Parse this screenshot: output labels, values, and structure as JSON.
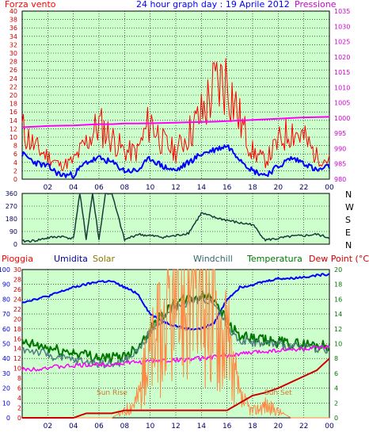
{
  "header": {
    "left_label": "Forza vento",
    "title": "24 hour graph day : 19 Aprile 2012",
    "right_label": "Pressione"
  },
  "colors": {
    "panel_bg": "#ccffcc",
    "frame": "#000000",
    "grid": "#000000",
    "red": "#ff0000",
    "blue": "#0000ff",
    "magenta": "#ff00ff",
    "dark_teal": "#1a3a3a",
    "dark_green": "#007700",
    "gray_green": "#4f7f7f",
    "orange": "#ff8844",
    "dark_red": "#cc0000",
    "solar_label": "#887700",
    "windchill_label": "#336666",
    "temp_label": "#007700",
    "sun_label": "#cc7733"
  },
  "x_ticks": [
    "02",
    "04",
    "06",
    "08",
    "10",
    "12",
    "14",
    "16",
    "18",
    "20",
    "22",
    "00"
  ],
  "direction_labels": [
    "N",
    "W",
    "S",
    "E",
    "N"
  ],
  "bottom_labels": {
    "pioggia": "Pioggia",
    "umidita": "Umidita",
    "solar": "Solar",
    "windchill": "Windchill",
    "temperatura": "Temperatura",
    "dew_point": "Dew Point (°C)",
    "sun_rise": "Sun Rise",
    "sun_set": "Sun Set"
  },
  "chart_data": [
    {
      "type": "line",
      "name": "wind-speed-and-pressure",
      "x_hours": [
        0,
        1,
        2,
        3,
        4,
        5,
        6,
        7,
        8,
        9,
        10,
        11,
        12,
        13,
        14,
        15,
        16,
        17,
        18,
        19,
        20,
        21,
        22,
        23,
        24
      ],
      "left_axis": {
        "label": "Forza vento",
        "ticks": [
          0,
          2,
          4,
          6,
          8,
          10,
          12,
          14,
          16,
          18,
          20,
          22,
          24,
          26,
          28,
          30,
          32,
          34,
          36,
          38,
          40
        ],
        "ylim": [
          0,
          40
        ]
      },
      "right_axis": {
        "label": "Pressione",
        "ticks": [
          980,
          985,
          990,
          995,
          1000,
          1005,
          1010,
          1015,
          1020,
          1025,
          1030,
          1035
        ],
        "ylim": [
          980,
          1035
        ]
      },
      "series": [
        {
          "color": "red",
          "values": [
            11,
            7,
            5,
            3,
            4,
            8,
            12,
            9,
            6,
            6,
            13,
            8,
            6,
            10,
            14,
            20,
            22,
            13,
            6,
            4,
            8,
            11,
            9,
            5,
            4
          ]
        },
        {
          "color": "blue",
          "values": [
            6,
            4,
            3,
            1,
            1,
            4,
            5,
            4,
            2,
            2,
            5,
            3,
            2,
            4,
            6,
            7,
            8,
            5,
            2,
            1,
            3,
            5,
            4,
            2,
            3
          ]
        },
        {
          "color": "magenta",
          "values": [
            997,
            997.2,
            997.4,
            997.5,
            997.6,
            997.8,
            998,
            998,
            998.2,
            998.2,
            998.3,
            998.4,
            998.5,
            998.6,
            998.7,
            998.8,
            999,
            999.2,
            999.4,
            999.6,
            999.8,
            1000,
            1000.2,
            1000.3,
            1000.4
          ]
        }
      ]
    },
    {
      "type": "line",
      "name": "wind-direction",
      "left_axis": {
        "ticks": [
          0,
          90,
          180,
          270,
          360
        ],
        "ylim": [
          0,
          360
        ]
      },
      "right_axis_labels": [
        "N",
        "W",
        "S",
        "E",
        "N"
      ],
      "x_hours": [
        0,
        1,
        2,
        3,
        4,
        4.5,
        5,
        5.5,
        6,
        6.5,
        7,
        8,
        9,
        10,
        11,
        12,
        13,
        14,
        15,
        16,
        17,
        18,
        19,
        20,
        21,
        22,
        23,
        24
      ],
      "values": [
        20,
        25,
        45,
        55,
        40,
        360,
        40,
        360,
        30,
        360,
        360,
        30,
        70,
        60,
        50,
        60,
        80,
        220,
        190,
        170,
        150,
        140,
        30,
        40,
        55,
        60,
        70,
        45
      ]
    },
    {
      "type": "line",
      "name": "weather-multi",
      "axes": {
        "pioggia": {
          "ticks": [
            0,
            10,
            20,
            30,
            40,
            50,
            60,
            70,
            80,
            90,
            100
          ],
          "ylim": [
            0,
            100
          ]
        },
        "umidita": {
          "ticks": [
            0,
            2,
            4,
            6,
            8,
            10,
            12,
            14,
            16,
            18,
            20,
            22,
            24,
            26,
            28,
            30
          ],
          "ylim": [
            0,
            30
          ]
        },
        "temperature": {
          "ticks": [
            0,
            2,
            4,
            6,
            8,
            10,
            12,
            14,
            16,
            18,
            20
          ],
          "ylim": [
            0,
            20
          ]
        }
      },
      "x_hours": [
        0,
        1,
        2,
        3,
        4,
        5,
        6,
        7,
        8,
        9,
        10,
        11,
        12,
        13,
        14,
        15,
        16,
        17,
        18,
        19,
        20,
        21,
        22,
        23,
        24
      ],
      "series": [
        {
          "label": "Umidita",
          "color": "blue",
          "axis": "pioggia",
          "values": [
            78,
            80,
            82,
            85,
            88,
            90,
            92,
            92,
            88,
            84,
            70,
            65,
            62,
            60,
            60,
            64,
            80,
            88,
            90,
            92,
            94,
            94,
            95,
            96,
            97
          ]
        },
        {
          "label": "Temperatura",
          "color": "dark_green",
          "axis": "temperature",
          "values": [
            10,
            9.8,
            9.4,
            9,
            8.8,
            8.5,
            8.2,
            8,
            8.4,
            9.5,
            12,
            14,
            15.5,
            16,
            16.4,
            16.3,
            13,
            11,
            10.6,
            10.4,
            10.2,
            10,
            9.9,
            9.8,
            9.7
          ]
        },
        {
          "label": "Windchill",
          "color": "gray_green",
          "axis": "temperature",
          "values": [
            9.2,
            9,
            8.5,
            8,
            7.8,
            7.5,
            7.4,
            7.2,
            7.6,
            9,
            11.5,
            13.5,
            15,
            15.6,
            16,
            15.8,
            12.3,
            10.5,
            10.2,
            10,
            9.9,
            9.6,
            9.5,
            9.4,
            9.3
          ]
        },
        {
          "label": "Dew Point (°C)",
          "color": "magenta",
          "axis": "temperature",
          "values": [
            6.5,
            6.6,
            6.8,
            6.9,
            7,
            7.1,
            7.2,
            7.2,
            7.4,
            7.5,
            7.6,
            7.7,
            7.8,
            7.9,
            8,
            8.2,
            8.4,
            8.6,
            8.8,
            9,
            9.1,
            9.2,
            9.3,
            9.4,
            9.5
          ]
        },
        {
          "label": "Solar",
          "color": "orange",
          "axis": "temperature",
          "values": [
            0,
            0,
            0,
            0,
            0,
            0,
            0,
            0,
            1,
            3,
            10,
            14,
            17,
            19,
            18,
            17,
            12,
            3,
            1,
            2,
            1,
            0,
            0,
            0,
            0
          ]
        },
        {
          "label": "Pioggia",
          "color": "dark_red",
          "axis": "pioggia",
          "values": [
            0,
            0,
            0,
            0,
            0,
            3,
            3,
            3,
            5,
            5,
            5,
            5,
            5,
            5,
            5,
            5,
            5,
            10,
            15,
            17,
            20,
            24,
            28,
            32,
            40
          ]
        }
      ]
    }
  ]
}
